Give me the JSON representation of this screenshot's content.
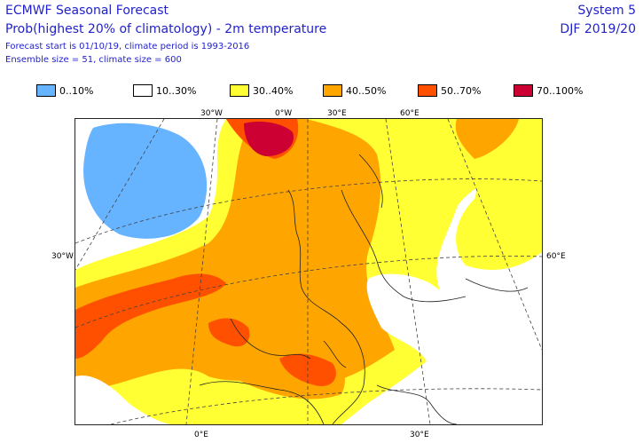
{
  "header": {
    "title": "ECMWF Seasonal Forecast",
    "subtitle": "Prob(highest 20% of climatology) - 2m temperature",
    "forecast_info": "Forecast start is 01/10/19, climate period is 1993-2016",
    "ensemble_info": "Ensemble size = 51, climate size = 600",
    "system": "System 5",
    "season": "DJF 2019/20"
  },
  "legend": [
    {
      "label": "0..10%",
      "color": "#66b3ff"
    },
    {
      "label": "10..30%",
      "color": "#ffffff"
    },
    {
      "label": "30..40%",
      "color": "#ffff33"
    },
    {
      "label": "40..50%",
      "color": "#ffa500"
    },
    {
      "label": "50..70%",
      "color": "#ff5000"
    },
    {
      "label": "70..100%",
      "color": "#cc0033"
    }
  ],
  "graticule_labels": {
    "top": [
      "30°W",
      "0°W",
      "30°E",
      "60°E"
    ],
    "left": "30°W",
    "right": "60°E",
    "bottom": [
      "0°E",
      "30°E"
    ]
  }
}
